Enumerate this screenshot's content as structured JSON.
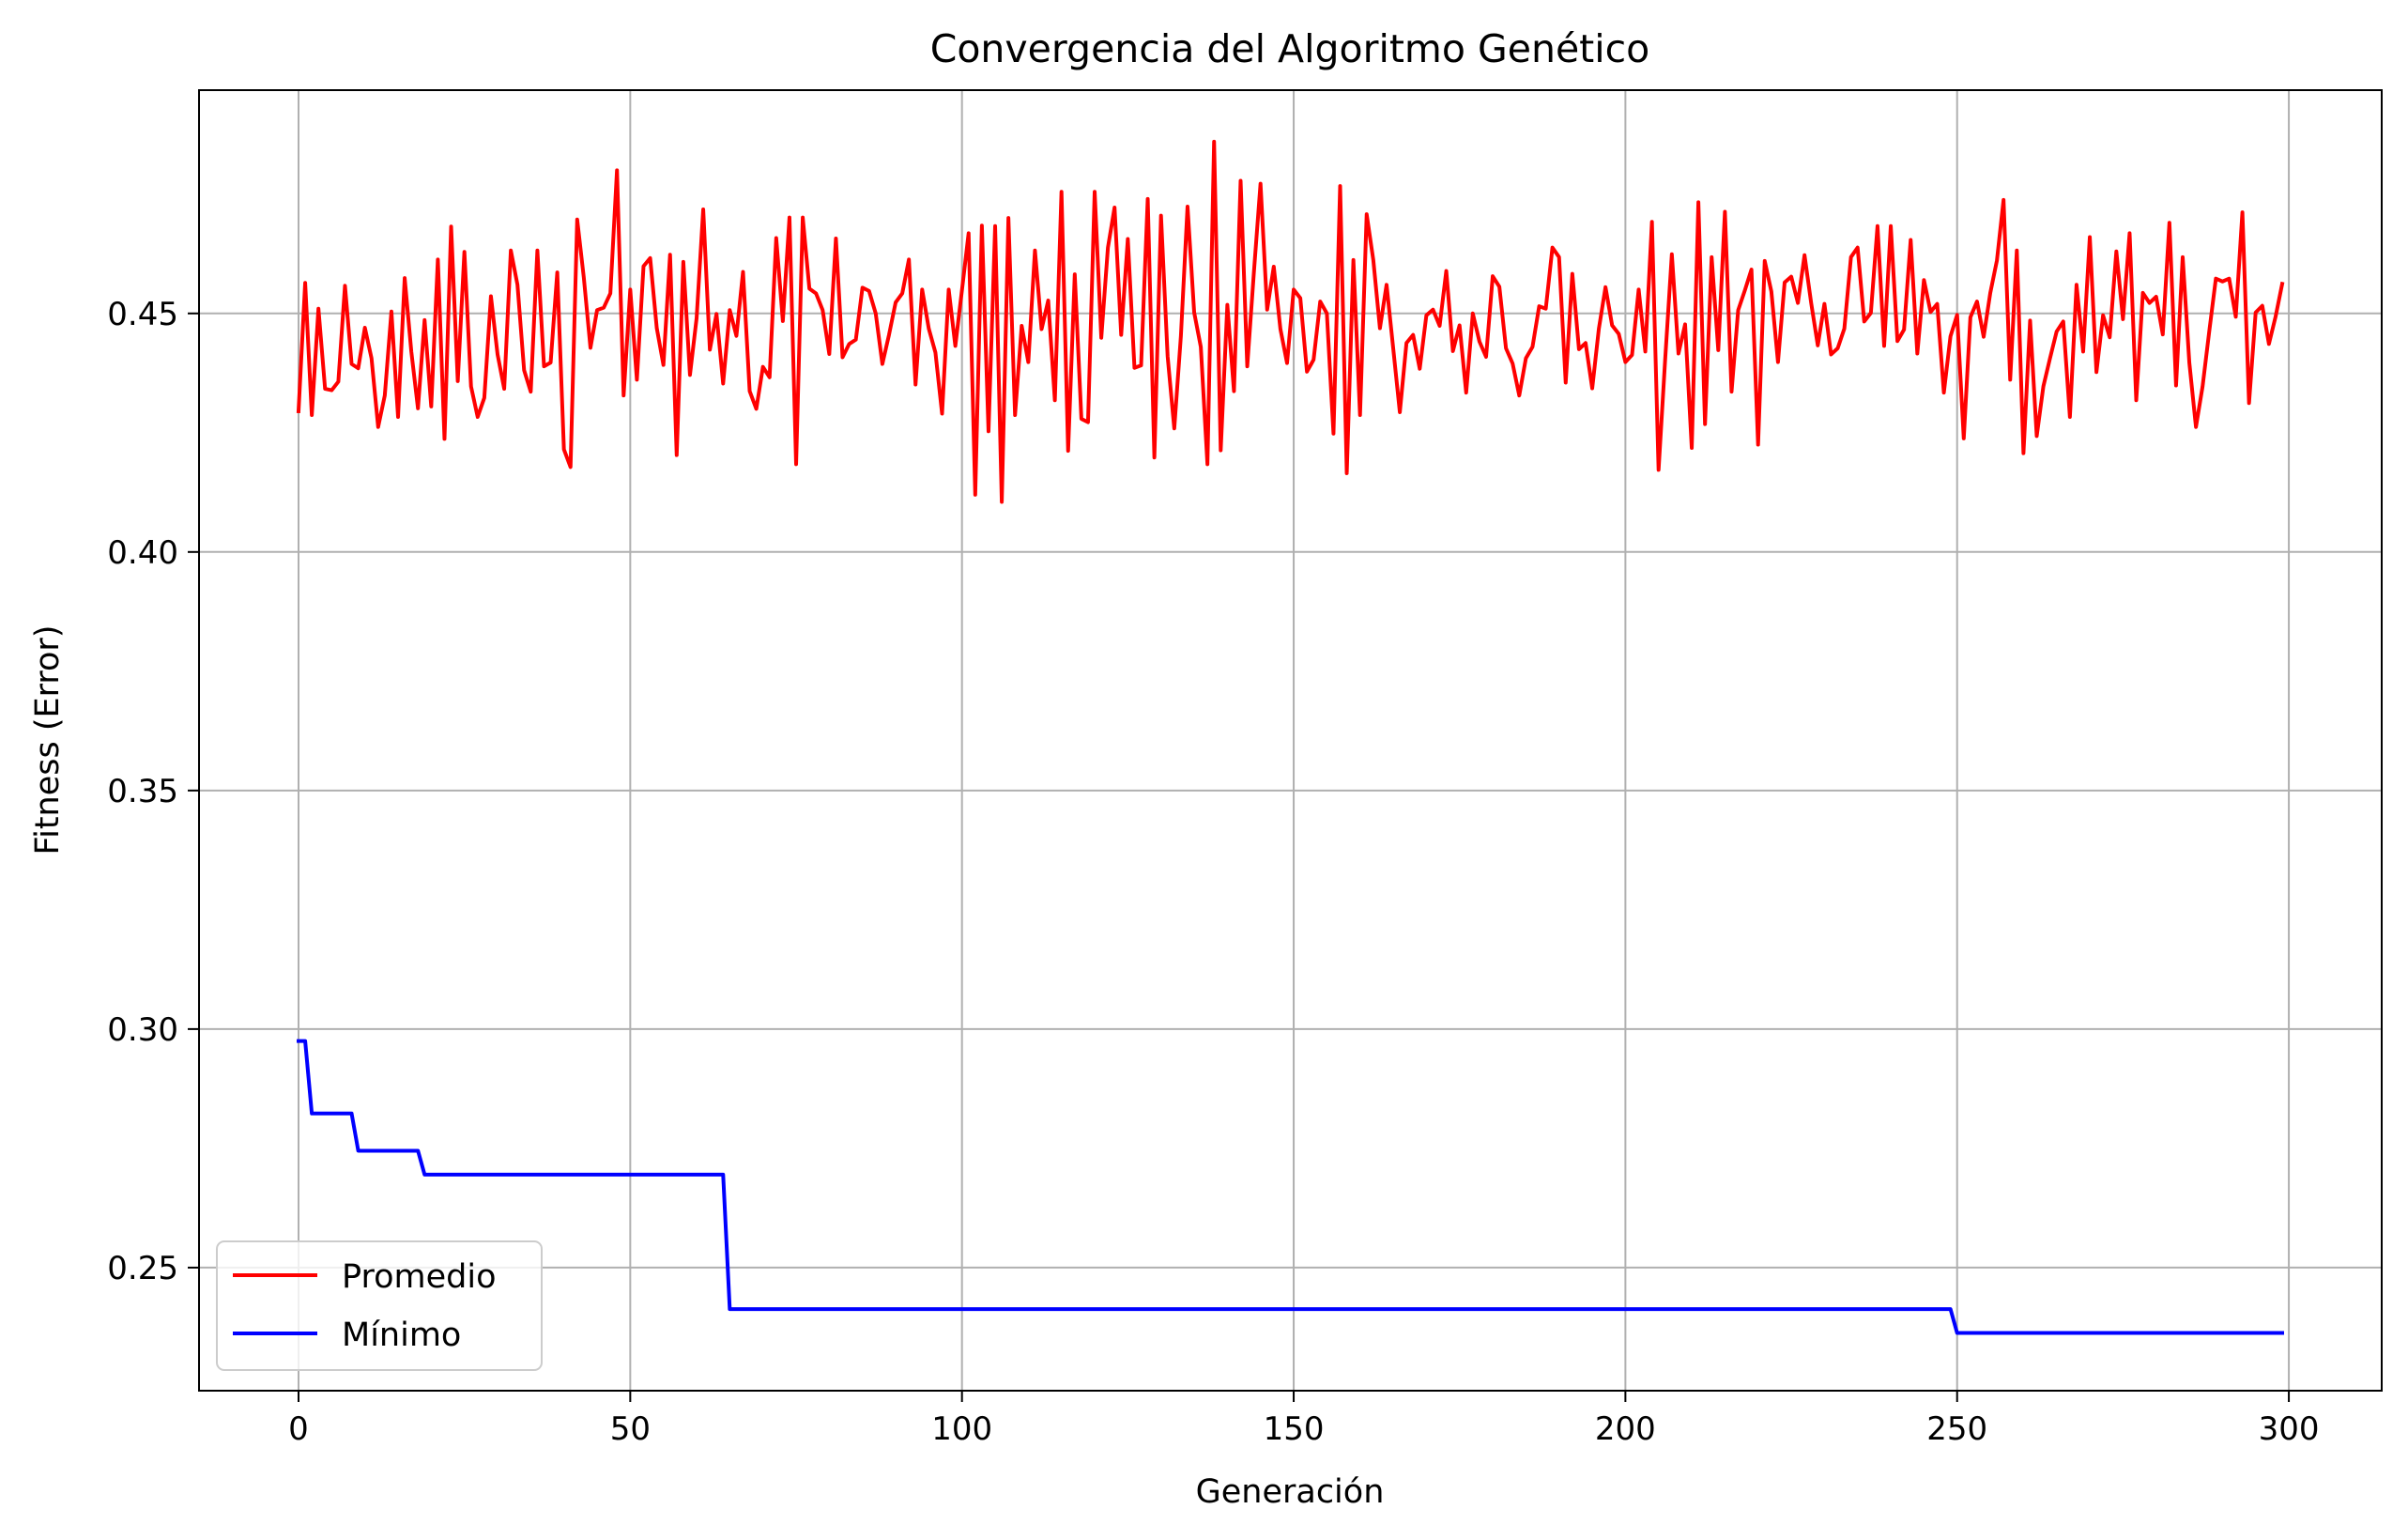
{
  "chart_data": {
    "type": "line",
    "title": "Convergencia del Algoritmo Genético",
    "xlabel": "Generación",
    "ylabel": "Fitness (Error)",
    "xlim": [
      -15,
      314
    ],
    "ylim": [
      0.2242,
      0.4968
    ],
    "xticks": [
      0,
      50,
      100,
      150,
      200,
      250,
      300
    ],
    "yticks": [
      0.25,
      0.3,
      0.35,
      0.4,
      0.45
    ],
    "ytick_labels": [
      "0.25",
      "0.30",
      "0.35",
      "0.40",
      "0.45"
    ],
    "grid": true,
    "legend_position": "lower-left",
    "series": [
      {
        "name": "Promedio",
        "color": "#ff0000",
        "x_start": 0,
        "x_step": 1,
        "y": [
          0.4295,
          0.4564,
          0.4287,
          0.451,
          0.4342,
          0.4339,
          0.4357,
          0.4558,
          0.4394,
          0.4385,
          0.447,
          0.4406,
          0.4262,
          0.4328,
          0.4504,
          0.4283,
          0.4574,
          0.442,
          0.4301,
          0.4486,
          0.4305,
          0.4613,
          0.4237,
          0.4682,
          0.4358,
          0.4629,
          0.4347,
          0.4283,
          0.4323,
          0.4536,
          0.4414,
          0.4342,
          0.4632,
          0.456,
          0.4381,
          0.4336,
          0.4632,
          0.4389,
          0.4397,
          0.4586,
          0.4215,
          0.4178,
          0.4697,
          0.4575,
          0.4428,
          0.4507,
          0.4512,
          0.4542,
          0.48,
          0.4328,
          0.455,
          0.4361,
          0.4599,
          0.4616,
          0.4469,
          0.4392,
          0.4623,
          0.4203,
          0.4608,
          0.4371,
          0.449,
          0.4718,
          0.4424,
          0.4499,
          0.4353,
          0.4507,
          0.4453,
          0.4587,
          0.4337,
          0.43,
          0.4388,
          0.4366,
          0.4658,
          0.4484,
          0.4701,
          0.4184,
          0.4701,
          0.4552,
          0.4542,
          0.4507,
          0.4415,
          0.4657,
          0.4408,
          0.4436,
          0.4445,
          0.4554,
          0.4547,
          0.45,
          0.4394,
          0.4455,
          0.4523,
          0.4542,
          0.4613,
          0.4351,
          0.455,
          0.4468,
          0.4418,
          0.429,
          0.455,
          0.4432,
          0.4549,
          0.4668,
          0.412,
          0.4684,
          0.4253,
          0.4683,
          0.4105,
          0.47,
          0.4287,
          0.4474,
          0.4398,
          0.4632,
          0.4467,
          0.4527,
          0.4318,
          0.4755,
          0.4212,
          0.4582,
          0.4279,
          0.4272,
          0.4755,
          0.4449,
          0.4638,
          0.4722,
          0.4455,
          0.4656,
          0.4386,
          0.4391,
          0.474,
          0.4198,
          0.4705,
          0.441,
          0.4259,
          0.4453,
          0.4724,
          0.4502,
          0.443,
          0.4184,
          0.486,
          0.4213,
          0.4518,
          0.4337,
          0.4778,
          0.4389,
          0.4586,
          0.4772,
          0.4508,
          0.4598,
          0.4467,
          0.4396,
          0.455,
          0.4532,
          0.4378,
          0.4403,
          0.4525,
          0.45,
          0.4248,
          0.4767,
          0.4165,
          0.4612,
          0.4287,
          0.4708,
          0.4612,
          0.4469,
          0.456,
          0.4427,
          0.4293,
          0.4438,
          0.4455,
          0.4384,
          0.4496,
          0.4508,
          0.4474,
          0.4589,
          0.4421,
          0.4475,
          0.4334,
          0.45,
          0.4441,
          0.4409,
          0.4578,
          0.4556,
          0.4427,
          0.4395,
          0.4328,
          0.4406,
          0.443,
          0.4515,
          0.451,
          0.4638,
          0.4618,
          0.4355,
          0.4583,
          0.4425,
          0.4438,
          0.4343,
          0.4468,
          0.4555,
          0.4475,
          0.4457,
          0.4398,
          0.4413,
          0.455,
          0.442,
          0.4692,
          0.4172,
          0.4405,
          0.4624,
          0.4416,
          0.4477,
          0.4218,
          0.4733,
          0.4268,
          0.4618,
          0.4423,
          0.4713,
          0.4336,
          0.4507,
          0.4548,
          0.4592,
          0.4225,
          0.461,
          0.4546,
          0.4398,
          0.4565,
          0.4577,
          0.4522,
          0.4622,
          0.4522,
          0.4433,
          0.452,
          0.4414,
          0.4427,
          0.4468,
          0.4618,
          0.4638,
          0.4483,
          0.4501,
          0.4683,
          0.4432,
          0.4683,
          0.4442,
          0.4466,
          0.4654,
          0.4416,
          0.457,
          0.4503,
          0.452,
          0.4334,
          0.4452,
          0.4497,
          0.4238,
          0.4492,
          0.4525,
          0.4451,
          0.4543,
          0.4611,
          0.4738,
          0.4361,
          0.4632,
          0.4207,
          0.4485,
          0.4243,
          0.4347,
          0.4406,
          0.4462,
          0.4483,
          0.4283,
          0.456,
          0.442,
          0.466,
          0.4377,
          0.4496,
          0.445,
          0.463,
          0.4488,
          0.4668,
          0.4318,
          0.4543,
          0.4522,
          0.4535,
          0.4456,
          0.469,
          0.4349,
          0.4618,
          0.4397,
          0.4262,
          0.4347,
          0.4462,
          0.4573,
          0.4567,
          0.4573,
          0.4493,
          0.4712,
          0.4312,
          0.4502,
          0.4516,
          0.4436,
          0.4493,
          0.4562
        ]
      },
      {
        "name": "Mínimo",
        "color": "#0000ff",
        "segments": [
          {
            "from": 0,
            "to": 1,
            "y": 0.2975
          },
          {
            "from": 2,
            "to": 8,
            "y": 0.2823
          },
          {
            "from": 9,
            "to": 18,
            "y": 0.2745
          },
          {
            "from": 19,
            "to": 64,
            "y": 0.2695
          },
          {
            "from": 65,
            "to": 249,
            "y": 0.2413
          },
          {
            "from": 250,
            "to": 299,
            "y": 0.2363
          }
        ]
      }
    ]
  }
}
